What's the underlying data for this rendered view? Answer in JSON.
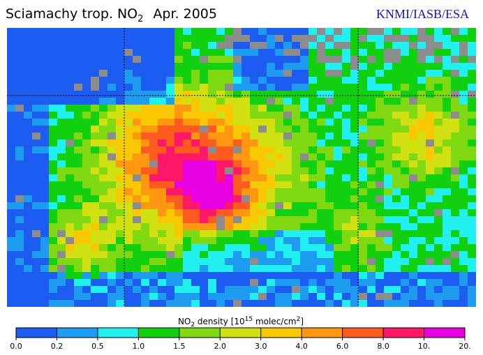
{
  "header": {
    "title": {
      "main": "Sciamachy trop. NO",
      "sub": "2",
      "date": "Apr. 2005"
    },
    "credit": "KNMI/IASB/ESA"
  },
  "colorbar": {
    "label": {
      "part1": "NO",
      "sub1": "2",
      "part2": " density [10",
      "sup": "15",
      "part3": " molec/cm",
      "sup2": "2",
      "part4": "]"
    },
    "ticks": [
      "0.0",
      "0.2",
      "0.5",
      "1.0",
      "1.5",
      "2.0",
      "3.0",
      "4.0",
      "6.0",
      "8.0",
      "10.",
      "20."
    ],
    "colors": [
      "#1c5cf0",
      "#1e9cf2",
      "#20f0f0",
      "#10d010",
      "#80d810",
      "#d0e010",
      "#f8c800",
      "#ff9810",
      "#ff5a20",
      "#ff1868",
      "#e800e0"
    ]
  }
}
